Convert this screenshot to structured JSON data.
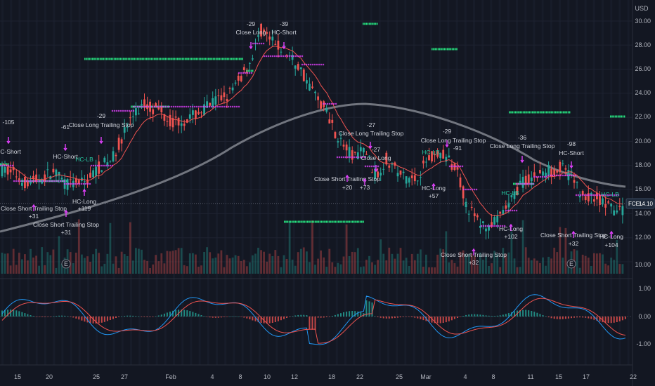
{
  "symbol_label": "FCEL",
  "current_price": "14.10",
  "currency": "USD",
  "price_axis": {
    "ticks": [
      "30.00",
      "28.00",
      "26.00",
      "24.00",
      "22.00",
      "20.00",
      "18.00",
      "16.00",
      "14.00",
      "12.00",
      "10.00"
    ]
  },
  "osc_axis": {
    "ticks": [
      "1.00",
      "0.00",
      "-1.00"
    ]
  },
  "time_axis": {
    "ticks": [
      "15",
      "20",
      "25",
      "27",
      "Feb",
      "4",
      "8",
      "10",
      "12",
      "18",
      "22",
      "25",
      "Mar",
      "4",
      "8",
      "11",
      "15",
      "17",
      "22"
    ]
  },
  "earnings_marker": "E",
  "annotations": {
    "a1": "-105",
    "a2": "HC-Short",
    "a3": "Close Short Trailing Stop",
    "a4": "+31",
    "a5": "-61",
    "a6": "HC-Short",
    "a7": "HC-LB",
    "a8": "HC-Long",
    "a9": "+119",
    "a10": "Close Short Trailing Stop",
    "a11": "+31",
    "a12": "-29",
    "a13": "Close Long Trailing Stop",
    "a14": "-29",
    "a15": "Close Long",
    "a16": "-39",
    "a17": "HC-Short",
    "a18": "-27",
    "a19": "Close Long Trailing Stop",
    "a20": "-27",
    "a21": "Close Long",
    "a22": "Close Short Trailing Stop",
    "a23": "+20",
    "a24": "+73",
    "a25": "-29",
    "a26": "Close Long Trailing Stop",
    "a27": "HC-LB",
    "a28": "-91",
    "a29": "HC-Long",
    "a30": "+57",
    "a31": "Close Short Trailing Stop",
    "a32": "+32",
    "a33": "HC-LB",
    "a34": "HC-Long",
    "a35": "+102",
    "a36": "-36",
    "a37": "Close Long Trailing Stop",
    "a38": "-98",
    "a39": "HC-Short",
    "a40": "Close Short Trailing Stop",
    "a41": "+32",
    "a42": "HC-LB",
    "a43": "HC-Long",
    "a44": "+104"
  },
  "colors": {
    "background": "#131722",
    "up": "#26a69a",
    "down": "#ef5350",
    "signal_band": "#26e07f",
    "trail_marker": "#e040fb",
    "ema": "#ef5350",
    "sma_long": "#8a8d96",
    "macd_line": "#2196f3",
    "signal_line": "#ef5350",
    "price_tag": "#1f2a3a"
  }
}
